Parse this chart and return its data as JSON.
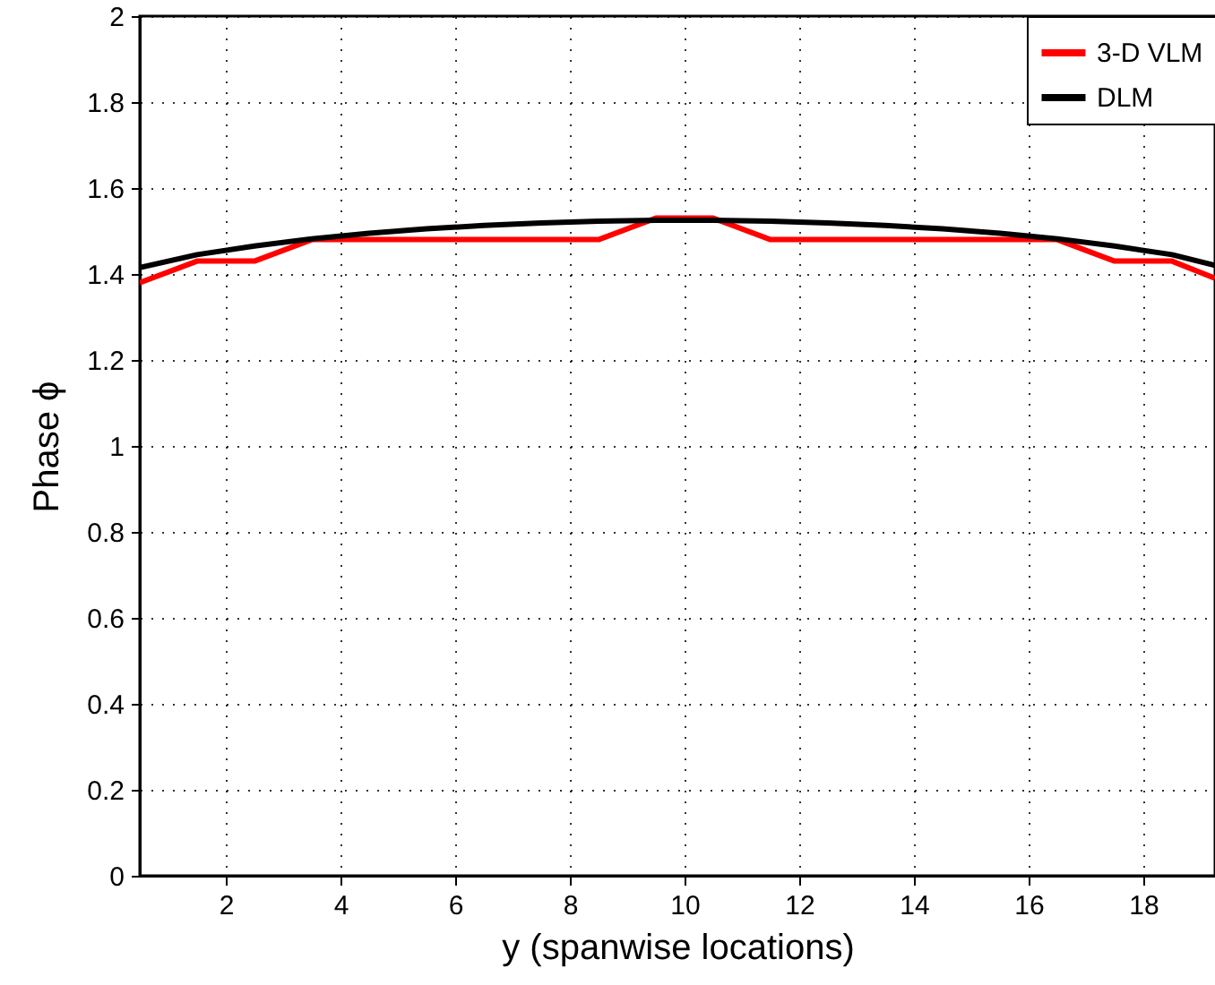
{
  "chart_data": {
    "type": "line",
    "xlabel": "y (spanwise locations)",
    "ylabel": "Phase ϕ",
    "xlim": [
      0.5,
      19.25
    ],
    "xticks": [
      2,
      4,
      6,
      8,
      10,
      12,
      14,
      16,
      18
    ],
    "ylim": [
      0,
      2
    ],
    "yticks": [
      0,
      0.2,
      0.4,
      0.6,
      0.8,
      1,
      1.2,
      1.4,
      1.6,
      1.8,
      2
    ],
    "grid": true,
    "legend": "top right",
    "line_style": "solid",
    "marker": "none",
    "series": [
      {
        "name": "3-D VLM",
        "color": "#ff0000",
        "x": [
          0.5,
          1.5,
          2.5,
          3.5,
          4.5,
          5.5,
          6.5,
          7.5,
          8.5,
          9.5,
          10.5,
          11.5,
          12.5,
          13.5,
          14.5,
          15.5,
          16.5,
          17.5,
          18.5,
          19.25
        ],
        "values": [
          1.38,
          1.43,
          1.43,
          1.48,
          1.48,
          1.48,
          1.48,
          1.48,
          1.48,
          1.53,
          1.53,
          1.48,
          1.48,
          1.48,
          1.48,
          1.48,
          1.48,
          1.43,
          1.43,
          1.39
        ]
      },
      {
        "name": "DLM",
        "color": "#000000",
        "x": [
          0.5,
          1.5,
          2.5,
          3.5,
          4.5,
          5.5,
          6.5,
          7.5,
          8.5,
          9.5,
          10.5,
          11.5,
          12.5,
          13.5,
          14.5,
          15.5,
          16.5,
          17.5,
          18.5,
          19.25
        ],
        "values": [
          1.415,
          1.445,
          1.465,
          1.482,
          1.495,
          1.505,
          1.513,
          1.519,
          1.523,
          1.525,
          1.525,
          1.523,
          1.519,
          1.513,
          1.505,
          1.495,
          1.482,
          1.465,
          1.445,
          1.42
        ]
      }
    ]
  }
}
